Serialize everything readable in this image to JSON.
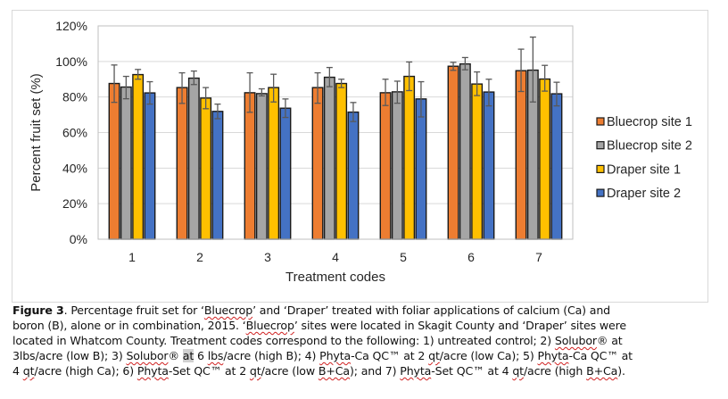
{
  "chart_data": {
    "type": "bar",
    "title": "",
    "xlabel": "Treatment codes",
    "ylabel": "Percent fruit set (%)",
    "ylim": [
      0,
      120
    ],
    "yticks": [
      0,
      20,
      40,
      60,
      80,
      100,
      120
    ],
    "ytick_labels": [
      "0%",
      "20%",
      "40%",
      "60%",
      "80%",
      "100%",
      "120%"
    ],
    "grid": true,
    "legend_position": "right",
    "categories": [
      "1",
      "2",
      "3",
      "4",
      "5",
      "6",
      "7"
    ],
    "series": [
      {
        "name": "Bluecrop site 1",
        "color": "#ED7D31",
        "values": [
          87.6,
          85.3,
          82.4,
          85.3,
          82.4,
          97.3,
          94.8
        ],
        "error_low": [
          77.0,
          76.4,
          71.4,
          76.5,
          75.2,
          95.0,
          83.1
        ],
        "error_high": [
          98.0,
          93.6,
          93.6,
          93.6,
          90.0,
          99.5,
          106.9
        ]
      },
      {
        "name": "Bluecrop site 2",
        "color": "#A5A5A5",
        "values": [
          85.6,
          90.6,
          81.9,
          91.1,
          82.9,
          98.6,
          95.1
        ],
        "error_low": [
          79.0,
          87.0,
          80.6,
          85.8,
          76.5,
          95.3,
          77.2
        ],
        "error_high": [
          91.6,
          94.6,
          84.6,
          96.6,
          88.9,
          102.2,
          113.7
        ]
      },
      {
        "name": "Draper site 1",
        "color": "#FFC000",
        "values": [
          92.6,
          79.4,
          85.3,
          87.6,
          91.6,
          87.3,
          90.1
        ],
        "error_low": [
          90.0,
          73.4,
          77.2,
          85.3,
          83.6,
          80.8,
          83.3
        ],
        "error_high": [
          95.5,
          85.3,
          92.8,
          90.0,
          99.7,
          94.1,
          97.8
        ]
      },
      {
        "name": "Draper site 2",
        "color": "#4472C4",
        "values": [
          82.3,
          71.9,
          73.7,
          71.5,
          78.9,
          82.8,
          81.8
        ],
        "error_low": [
          76.0,
          67.8,
          68.5,
          66.2,
          68.8,
          75.0,
          75.0
        ],
        "error_high": [
          88.6,
          76.0,
          78.9,
          76.9,
          88.6,
          90.0,
          88.3
        ]
      }
    ]
  },
  "caption": {
    "figure_label": "Figure 3",
    "lines": [
      [
        {
          "t": ". Percentage fruit set for ‘"
        },
        {
          "t": "Bluecrop",
          "sq": true
        },
        {
          "t": "’ and ‘Draper’ treated with foliar applications of calcium (Ca) and"
        }
      ],
      [
        {
          "t": "boron (B), alone or in combination, 2015.  ‘"
        },
        {
          "t": "Bluecrop",
          "sq": true
        },
        {
          "t": "’ sites were located in Skagit County and ‘Draper’ sites were"
        }
      ],
      [
        {
          "t": "located in Whatcom County.  Treatment codes correspond to the following: 1) untreated control; 2) "
        },
        {
          "t": "Solubor",
          "sq": true
        },
        {
          "t": "® at"
        }
      ],
      [
        {
          "t": "3lbs/acre (low B); 3) "
        },
        {
          "t": "Solubor",
          "sq": true
        },
        {
          "t": "® "
        },
        {
          "t": "at",
          "hl": true
        },
        {
          "t": " 6 "
        },
        {
          "t": "lbs",
          "sq": true
        },
        {
          "t": "/acre (high B); 4) "
        },
        {
          "t": "Phyta",
          "sq": true
        },
        {
          "t": "-Ca QC™ at 2 "
        },
        {
          "t": "qt",
          "sq": true
        },
        {
          "t": "/acre (low Ca); 5) "
        },
        {
          "t": "Phyta",
          "sq": true
        },
        {
          "t": "-Ca QC™ at"
        }
      ],
      [
        {
          "t": "4 "
        },
        {
          "t": "qt",
          "sq": true
        },
        {
          "t": "/acre (high Ca); 6) "
        },
        {
          "t": "Phyta",
          "sq": true
        },
        {
          "t": "-Set QC™ at 2 "
        },
        {
          "t": "qt",
          "sq": true
        },
        {
          "t": "/acre (low "
        },
        {
          "t": "B+Ca",
          "sq": true
        },
        {
          "t": "); and 7) "
        },
        {
          "t": "Phyta",
          "sq": true
        },
        {
          "t": "-Set QC™ at 4 "
        },
        {
          "t": "qt",
          "sq": true
        },
        {
          "t": "/acre (high "
        },
        {
          "t": "B+Ca",
          "sq": true
        },
        {
          "t": ")."
        }
      ]
    ]
  }
}
